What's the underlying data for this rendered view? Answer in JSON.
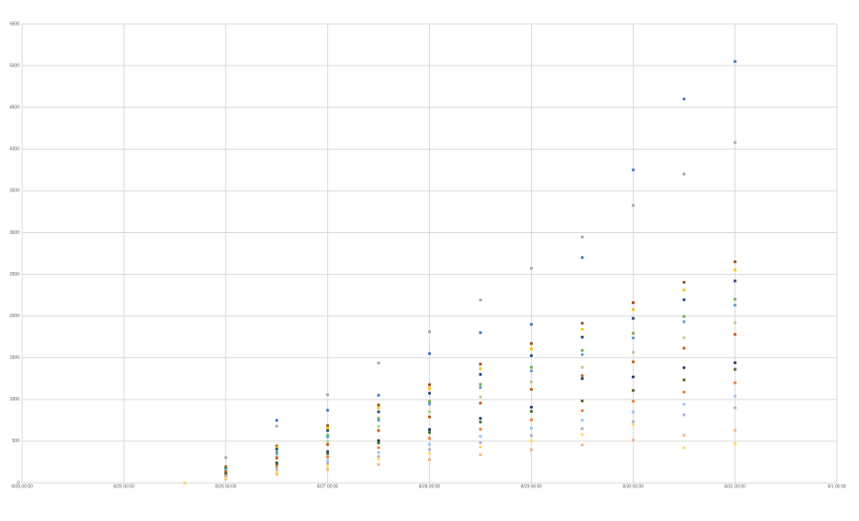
{
  "chart_data": {
    "type": "scatter",
    "x": [
      1.6,
      2,
      2.5,
      3,
      3.5,
      4,
      4.5,
      5,
      5.5,
      6,
      6.5,
      7
    ],
    "xlim": [
      0,
      8
    ],
    "xticks": [
      {
        "value": 0,
        "label": "8/24 00:00"
      },
      {
        "value": 1,
        "label": "8/25 00:00"
      },
      {
        "value": 2,
        "label": "8/26 00:00"
      },
      {
        "value": 3,
        "label": "8/27 00:00"
      },
      {
        "value": 4,
        "label": "8/28 00:00"
      },
      {
        "value": 5,
        "label": "8/29 00:00"
      },
      {
        "value": 6,
        "label": "8/30 00:00"
      },
      {
        "value": 7,
        "label": "8/31 00:00"
      },
      {
        "value": 8,
        "label": "9/1 00:00"
      }
    ],
    "ylim": [
      0,
      5500
    ],
    "yticks": [
      0,
      500,
      1000,
      1500,
      2000,
      2500,
      3000,
      3500,
      4000,
      4500,
      5000,
      5500
    ],
    "grid": true,
    "series": [
      {
        "color": "#4472c4",
        "values": [
          0,
          150,
          750,
          870,
          1050,
          1550,
          1800,
          1900,
          2700,
          3750,
          4600,
          5050
        ]
      },
      {
        "color": "#a5a5a5",
        "values": [
          0,
          302,
          680,
          1057,
          1436,
          1812,
          2191,
          2570,
          2946,
          3325,
          3701,
          4080
        ]
      },
      {
        "color": "#9e480e",
        "values": [
          0,
          196,
          443,
          686,
          933,
          1177,
          1423,
          1670,
          1913,
          2160,
          2404,
          2650
        ]
      },
      {
        "color": "#ffc000",
        "values": [
          0,
          189,
          426,
          660,
          898,
          1132,
          1369,
          1607,
          1841,
          2078,
          2313,
          2550
        ]
      },
      {
        "color": "#264478",
        "values": [
          0,
          179,
          404,
          627,
          852,
          1074,
          1300,
          1525,
          1747,
          1972,
          2195,
          2420
        ]
      },
      {
        "color": "#70ad47",
        "values": [
          0,
          163,
          367,
          570,
          774,
          977,
          1181,
          1386,
          1588,
          1793,
          1995,
          2200
        ]
      },
      {
        "color": "#5b9bd5",
        "values": [
          0,
          158,
          356,
          552,
          750,
          946,
          1144,
          1342,
          1538,
          1736,
          1932,
          2130
        ]
      },
      {
        "color": "#a9d18e",
        "values": [
          0,
          142,
          321,
          497,
          676,
          852,
          1031,
          1210,
          1386,
          1565,
          1741,
          1920
        ]
      },
      {
        "color": "#c55a11",
        "values": [
          0,
          132,
          297,
          461,
          627,
          790,
          956,
          1121,
          1285,
          1451,
          1614,
          1780
        ]
      },
      {
        "color": "#1f3864",
        "values": [
          0,
          107,
          240,
          373,
          507,
          639,
          773,
          907,
          1250,
          1270,
          1380,
          1440
        ]
      },
      {
        "color": "#43682b",
        "values": [
          0,
          101,
          227,
          352,
          479,
          604,
          730,
          857,
          982,
          1108,
          1234,
          1360
        ]
      },
      {
        "color": "#ed7d31",
        "values": [
          0,
          89,
          200,
          311,
          422,
          533,
          644,
          756,
          866,
          978,
          1088,
          1200
        ]
      },
      {
        "color": "#9dc3e6",
        "values": [
          0,
          77,
          174,
          269,
          366,
          462,
          558,
          655,
          751,
          848,
          943,
          1040
        ]
      },
      {
        "color": "#b4a7d6",
        "values": [
          0,
          67,
          150,
          233,
          317,
          400,
          483,
          567,
          650,
          734,
          816,
          900
        ]
      },
      {
        "color": "#f4b183",
        "values": [
          0,
          47,
          105,
          163,
          222,
          280,
          338,
          397,
          455,
          514,
          571,
          630
        ]
      },
      {
        "color": "#ffd966",
        "values": [
          0,
          59,
          133,
          207,
          282,
          355,
          430,
          504,
          578,
          700,
          420,
          470
        ]
      }
    ]
  }
}
